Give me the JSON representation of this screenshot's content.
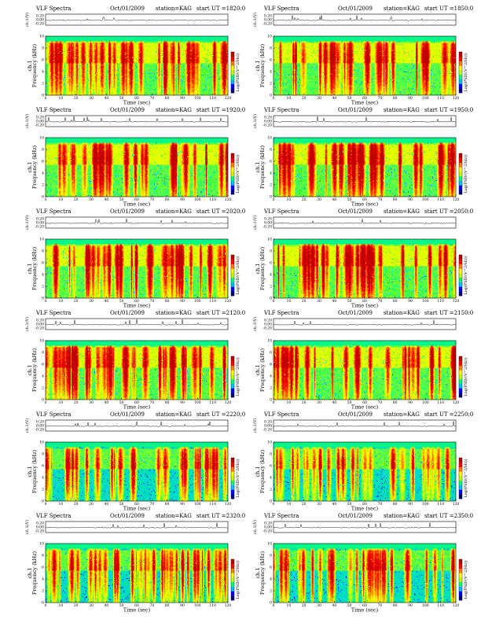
{
  "sheet": {
    "panels": [
      {
        "title": "VLF Spectra",
        "date": "Oct/01/2009",
        "station": "station=KAG",
        "start": "start  UT  =1820:0"
      },
      {
        "title": "VLF Spectra",
        "date": "Oct/01/2009",
        "station": "station=KAG",
        "start": "start  UT  =1850:0"
      },
      {
        "title": "VLF Spectra",
        "date": "Oct/01/2009",
        "station": "station=KAG",
        "start": "start  UT  =1920:0"
      },
      {
        "title": "VLF Spectra",
        "date": "Oct/01/2009",
        "station": "station=KAG",
        "start": "start  UT  =1950:0"
      },
      {
        "title": "VLF Spectra",
        "date": "Oct/01/2009",
        "station": "station=KAG",
        "start": "start  UT  =2020:0"
      },
      {
        "title": "VLF Spectra",
        "date": "Oct/01/2009",
        "station": "station=KAG",
        "start": "start  UT  =2050:0"
      },
      {
        "title": "VLF Spectra",
        "date": "Oct/01/2009",
        "station": "station=KAG",
        "start": "start  UT  =2120:0"
      },
      {
        "title": "VLF Spectra",
        "date": "Oct/01/2009",
        "station": "station=KAG",
        "start": "start  UT  =2150:0"
      },
      {
        "title": "VLF Spectra",
        "date": "Oct/01/2009",
        "station": "station=KAG",
        "start": "start  UT  =2220:0"
      },
      {
        "title": "VLF Spectra",
        "date": "Oct/01/2009",
        "station": "station=KAG",
        "start": "start  UT  =2250:0"
      },
      {
        "title": "VLF Spectra",
        "date": "Oct/01/2009",
        "station": "station=KAG",
        "start": "start  UT  =2320:0"
      },
      {
        "title": "VLF Spectra",
        "date": "Oct/01/2009",
        "station": "station=KAG",
        "start": "start  UT  =2350:0"
      }
    ]
  },
  "chart_data": {
    "type": "heatmap",
    "panel_count": 12,
    "waveform_ylabel": "ch.1(V)",
    "waveform_ticks": [
      "0.20",
      "0.00",
      "-0.20"
    ],
    "spectrogram_ylabel": "Frequency (kHz)",
    "spectrogram_channel_label": "ch.1",
    "xlabel": "Time (sec)",
    "x_ticks": [
      0,
      10,
      20,
      30,
      40,
      50,
      60,
      70,
      80,
      90,
      100,
      110,
      120
    ],
    "xlim": [
      0,
      120
    ],
    "y_ticks": [
      0,
      2,
      4,
      6,
      8,
      10
    ],
    "ylim": [
      0,
      10
    ],
    "colorbar_label": "Log(PSD/(V^2/Hz))",
    "colormap": [
      "#00007f",
      "#0000ff",
      "#00bfff",
      "#00ff7f",
      "#bfff00",
      "#ffff00",
      "#ff7f00",
      "#ff0000",
      "#bf0000"
    ]
  }
}
